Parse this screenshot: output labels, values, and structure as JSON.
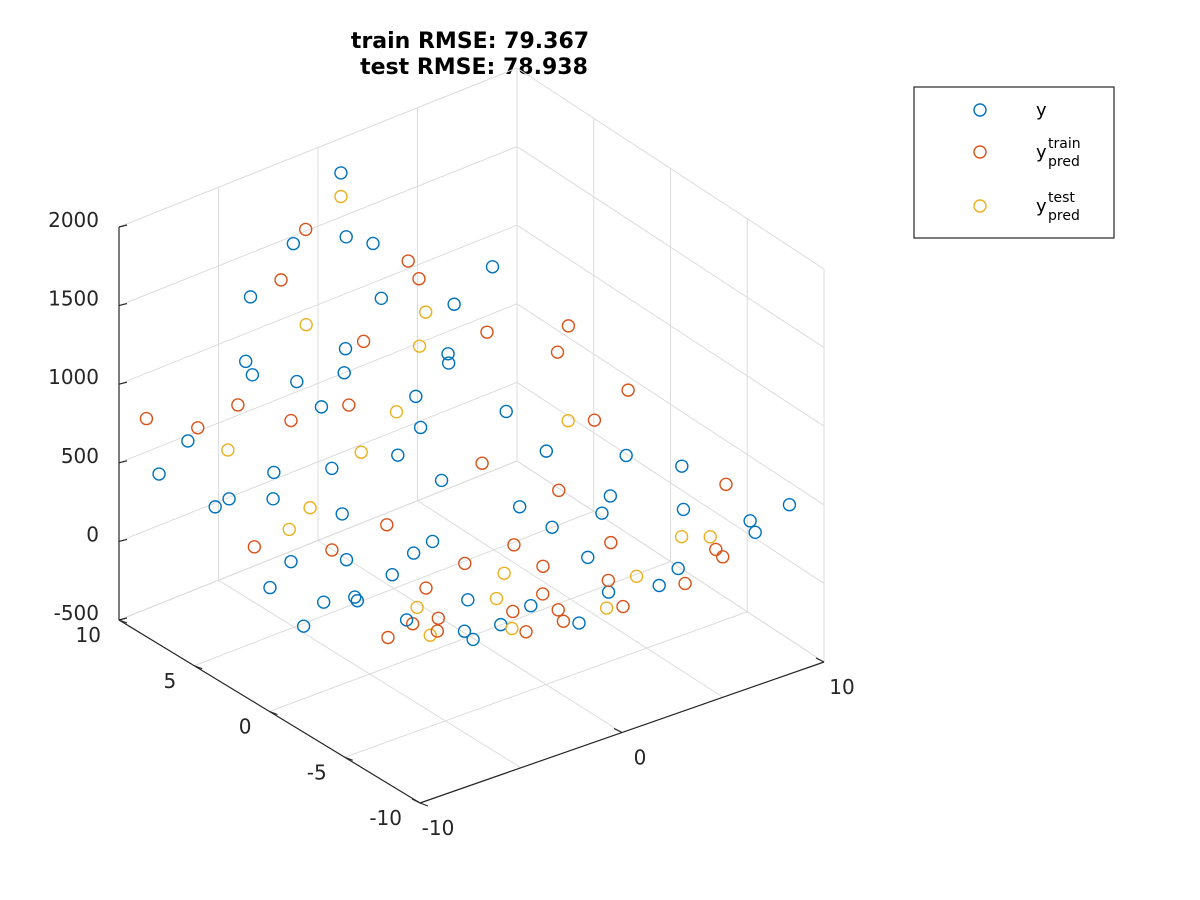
{
  "chart_data": {
    "type": "scatter",
    "projection": "3d",
    "title": [
      "train RMSE: 79.367",
      "test RMSE: 78.938"
    ],
    "xlim": [
      -10,
      10
    ],
    "ylim": [
      -10,
      10
    ],
    "zlim": [
      -500,
      2000
    ],
    "x_ticks": [
      "-10",
      "0",
      "10"
    ],
    "y_ticks": [
      "-10",
      "-5",
      "0",
      "5",
      "10"
    ],
    "z_ticks": [
      "-500",
      "0",
      "500",
      "1000",
      "1500",
      "2000"
    ],
    "grid": true,
    "marker": "circle-open",
    "legend": {
      "placement": "top-right-outside",
      "entries": [
        {
          "base": "y",
          "sup": "",
          "sub": ""
        },
        {
          "base": "y",
          "sup": "train",
          "sub": "pred"
        },
        {
          "base": "y",
          "sup": "test",
          "sub": "pred"
        }
      ]
    },
    "series": [
      {
        "name": "y",
        "color": "#0072BD"
      },
      {
        "name": "y_pred^train",
        "color": "#D95319"
      },
      {
        "name": "y_pred^test",
        "color": "#EDB120"
      }
    ],
    "points": [
      [
        -9.8,
        -2.0,
        150,
        0
      ],
      [
        -9.0,
        -4.5,
        420,
        0
      ],
      [
        -8.5,
        3.0,
        300,
        1
      ],
      [
        -9.5,
        8.0,
        520,
        0
      ],
      [
        -8.0,
        -8.0,
        360,
        2
      ],
      [
        -7.8,
        1.5,
        260,
        0
      ],
      [
        -7.0,
        -5.5,
        240,
        1
      ],
      [
        -7.5,
        6.0,
        380,
        0
      ],
      [
        -6.5,
        -1.0,
        120,
        0
      ],
      [
        -6.8,
        9.0,
        620,
        1
      ],
      [
        -6.0,
        4.0,
        230,
        2
      ],
      [
        -5.5,
        -7.5,
        190,
        0
      ],
      [
        -5.0,
        2.5,
        140,
        1
      ],
      [
        -5.8,
        -3.5,
        90,
        0
      ],
      [
        -4.5,
        7.0,
        340,
        0
      ],
      [
        -4.0,
        -9.0,
        260,
        1
      ],
      [
        -3.5,
        0.5,
        30,
        0
      ],
      [
        -4.2,
        5.0,
        220,
        2
      ],
      [
        -3.0,
        -6.0,
        80,
        0
      ],
      [
        -2.5,
        8.5,
        480,
        1
      ],
      [
        -2.0,
        -2.5,
        -20,
        0
      ],
      [
        -1.5,
        3.5,
        70,
        1
      ],
      [
        -1.0,
        -8.5,
        150,
        0
      ],
      [
        -0.5,
        6.5,
        300,
        2
      ],
      [
        0.0,
        -4.0,
        -60,
        0
      ],
      [
        0.5,
        1.0,
        -120,
        1
      ],
      [
        1.0,
        9.5,
        700,
        0
      ],
      [
        1.5,
        -7.0,
        40,
        2
      ],
      [
        2.0,
        4.5,
        120,
        0
      ],
      [
        2.5,
        -1.5,
        -80,
        1
      ],
      [
        3.0,
        7.5,
        420,
        0
      ],
      [
        3.5,
        -9.5,
        260,
        1
      ],
      [
        4.0,
        2.0,
        10,
        0
      ],
      [
        4.5,
        -5.0,
        -20,
        2
      ],
      [
        5.0,
        8.0,
        560,
        0
      ],
      [
        5.5,
        -2.0,
        -40,
        1
      ],
      [
        6.0,
        5.5,
        300,
        0
      ],
      [
        6.5,
        -8.0,
        200,
        1
      ],
      [
        7.0,
        0.0,
        60,
        0
      ],
      [
        7.5,
        -4.0,
        30,
        2
      ],
      [
        8.0,
        9.0,
        900,
        0
      ],
      [
        8.5,
        3.0,
        280,
        1
      ],
      [
        9.0,
        -6.5,
        220,
        0
      ],
      [
        9.5,
        6.0,
        640,
        1
      ],
      [
        9.8,
        -1.0,
        180,
        0
      ],
      [
        -9.2,
        -6.8,
        330,
        1
      ],
      [
        -8.8,
        5.2,
        440,
        0
      ],
      [
        -7.2,
        -9.2,
        420,
        0
      ],
      [
        -6.2,
        7.8,
        520,
        2
      ],
      [
        -5.2,
        -4.8,
        150,
        1
      ],
      [
        -4.8,
        1.8,
        110,
        0
      ],
      [
        -3.8,
        -7.8,
        200,
        2
      ],
      [
        -3.2,
        4.2,
        180,
        0
      ],
      [
        -2.8,
        -0.8,
        -10,
        1
      ],
      [
        -2.2,
        6.2,
        300,
        0
      ],
      [
        -1.8,
        -5.2,
        60,
        1
      ],
      [
        -1.2,
        8.2,
        520,
        0
      ],
      [
        -0.8,
        -2.8,
        -50,
        2
      ],
      [
        -0.2,
        2.2,
        -20,
        0
      ],
      [
        0.2,
        -9.8,
        280,
        1
      ],
      [
        0.8,
        5.8,
        260,
        0
      ],
      [
        1.2,
        -3.2,
        -90,
        1
      ],
      [
        1.8,
        7.2,
        400,
        2
      ],
      [
        2.2,
        -6.2,
        60,
        0
      ],
      [
        2.8,
        0.8,
        -100,
        1
      ],
      [
        3.2,
        -8.2,
        180,
        0
      ],
      [
        3.8,
        4.2,
        160,
        1
      ],
      [
        4.2,
        -2.2,
        -60,
        0
      ],
      [
        4.8,
        9.2,
        760,
        2
      ],
      [
        5.2,
        -6.8,
        110,
        0
      ],
      [
        5.8,
        1.8,
        40,
        1
      ],
      [
        6.2,
        -0.5,
        20,
        0
      ],
      [
        6.8,
        7.8,
        620,
        1
      ],
      [
        7.2,
        -9.2,
        400,
        0
      ],
      [
        7.8,
        3.8,
        260,
        2
      ],
      [
        8.2,
        -3.2,
        120,
        0
      ],
      [
        8.8,
        5.8,
        520,
        1
      ],
      [
        9.2,
        -8.8,
        460,
        0
      ],
      [
        9.8,
        2.5,
        440,
        1
      ],
      [
        -9.6,
        0.5,
        240,
        0
      ],
      [
        -9.0,
        9.5,
        760,
        1
      ],
      [
        -8.2,
        -1.2,
        180,
        0
      ],
      [
        -7.6,
        8.6,
        600,
        0
      ],
      [
        -6.6,
        -6.6,
        240,
        1
      ],
      [
        -5.6,
        5.6,
        310,
        0
      ],
      [
        -4.6,
        -2.6,
        60,
        2
      ],
      [
        -3.6,
        9.6,
        760,
        0
      ],
      [
        -2.6,
        -9.6,
        300,
        1
      ],
      [
        -1.6,
        1.6,
        10,
        0
      ],
      [
        -0.6,
        -6.6,
        100,
        1
      ],
      [
        0.4,
        8.8,
        620,
        0
      ],
      [
        1.4,
        -0.4,
        -140,
        2
      ],
      [
        2.4,
        6.4,
        320,
        0
      ],
      [
        3.4,
        -4.6,
        -20,
        1
      ],
      [
        4.4,
        0.4,
        -40,
        0
      ],
      [
        5.4,
        -9.0,
        360,
        1
      ],
      [
        6.4,
        3.4,
        160,
        0
      ],
      [
        7.4,
        -6.0,
        160,
        2
      ],
      [
        8.4,
        0.8,
        200,
        0
      ],
      [
        9.4,
        -4.4,
        300,
        1
      ],
      [
        1.0,
        9.8,
        1800,
        0
      ],
      [
        1.0,
        9.8,
        1650,
        2
      ],
      [
        -2.0,
        9.0,
        1550,
        0
      ],
      [
        -1.0,
        9.5,
        1560,
        1
      ],
      [
        0.5,
        8.8,
        1480,
        0
      ],
      [
        -3.0,
        8.5,
        1400,
        1
      ],
      [
        2.0,
        9.0,
        1350,
        0
      ],
      [
        3.0,
        8.0,
        1250,
        1
      ],
      [
        -4.0,
        9.2,
        1300,
        0
      ],
      [
        -2.5,
        7.5,
        1150,
        2
      ],
      [
        1.5,
        7.8,
        1100,
        0
      ],
      [
        4.0,
        8.6,
        1050,
        1
      ],
      [
        -5.0,
        8.2,
        1000,
        0
      ],
      [
        0.0,
        7.0,
        950,
        1
      ],
      [
        -3.5,
        6.8,
        880,
        0
      ],
      [
        2.5,
        6.6,
        820,
        2
      ],
      [
        5.0,
        7.6,
        900,
        0
      ],
      [
        -6.0,
        7.4,
        820,
        1
      ],
      [
        3.5,
        6.0,
        700,
        0
      ],
      [
        -1.5,
        6.0,
        680,
        1
      ]
    ]
  }
}
